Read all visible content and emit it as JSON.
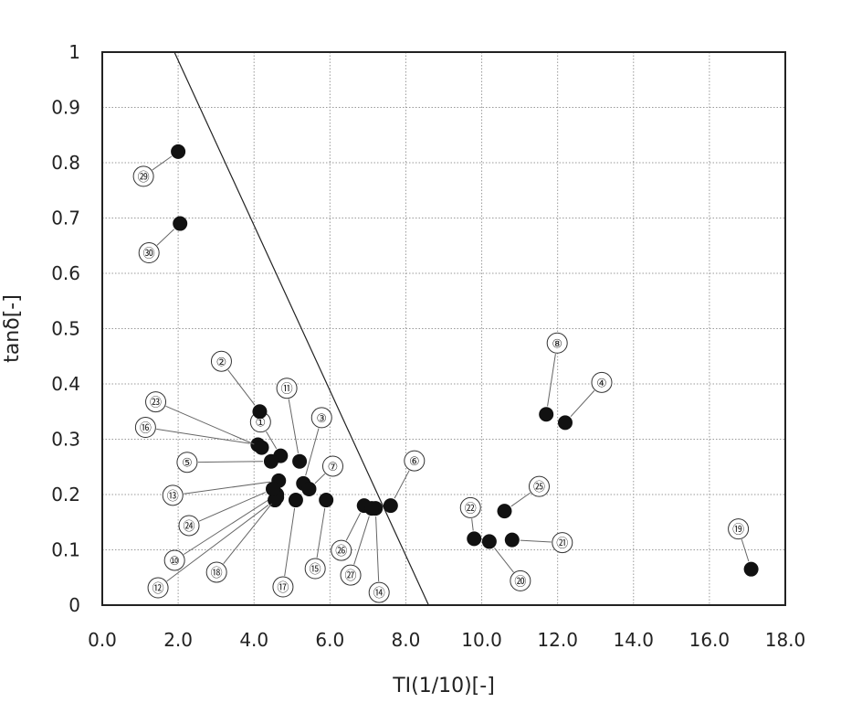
{
  "chart_data": {
    "type": "scatter",
    "title": "",
    "xlabel": "TI(1/10)[-]",
    "ylabel": "tanδ[-]",
    "xlim": [
      0,
      18
    ],
    "ylim": [
      0,
      1
    ],
    "x_ticks": [
      "0.0",
      "2.0",
      "4.0",
      "6.0",
      "8.0",
      "10.0",
      "12.0",
      "14.0",
      "16.0",
      "18.0"
    ],
    "y_ticks": [
      "0",
      "0.1",
      "0.2",
      "0.3",
      "0.4",
      "0.5",
      "0.6",
      "0.7",
      "0.8",
      "0.9",
      "1"
    ],
    "grid": true,
    "legend": "none",
    "series": [
      {
        "points": [
          {
            "label": "①",
            "x": 4.7,
            "y": 0.27
          },
          {
            "label": "②",
            "x": 4.15,
            "y": 0.35
          },
          {
            "label": "③",
            "x": 5.3,
            "y": 0.22
          },
          {
            "label": "④",
            "x": 12.2,
            "y": 0.33
          },
          {
            "label": "⑤",
            "x": 4.45,
            "y": 0.26
          },
          {
            "label": "⑥",
            "x": 7.6,
            "y": 0.18
          },
          {
            "label": "⑦",
            "x": 5.45,
            "y": 0.21
          },
          {
            "label": "⑧",
            "x": 11.7,
            "y": 0.345
          },
          {
            "label": "⑩",
            "x": 4.6,
            "y": 0.2
          },
          {
            "label": "⑪",
            "x": 5.2,
            "y": 0.26
          },
          {
            "label": "⑫",
            "x": 4.55,
            "y": 0.19
          },
          {
            "label": "⑬",
            "x": 4.65,
            "y": 0.225
          },
          {
            "label": "⑭",
            "x": 7.2,
            "y": 0.175
          },
          {
            "label": "⑮",
            "x": 5.9,
            "y": 0.19
          },
          {
            "label": "⑯",
            "x": 4.1,
            "y": 0.29
          },
          {
            "label": "⑰",
            "x": 5.1,
            "y": 0.19
          },
          {
            "label": "⑱",
            "x": 4.6,
            "y": 0.195
          },
          {
            "label": "⑲",
            "x": 17.1,
            "y": 0.065
          },
          {
            "label": "⑳",
            "x": 10.2,
            "y": 0.115
          },
          {
            "label": "㉑",
            "x": 10.8,
            "y": 0.118
          },
          {
            "label": "㉒",
            "x": 9.8,
            "y": 0.12
          },
          {
            "label": "㉓",
            "x": 4.2,
            "y": 0.285
          },
          {
            "label": "㉔",
            "x": 4.5,
            "y": 0.21
          },
          {
            "label": "㉕",
            "x": 10.6,
            "y": 0.17
          },
          {
            "label": "㉖",
            "x": 6.9,
            "y": 0.18
          },
          {
            "label": "㉗",
            "x": 7.1,
            "y": 0.175
          },
          {
            "label": "㉙",
            "x": 2.0,
            "y": 0.82
          },
          {
            "label": "㉚",
            "x": 2.05,
            "y": 0.69
          }
        ]
      }
    ],
    "reference_line": {
      "from": [
        1.9,
        1.0
      ],
      "to": [
        8.6,
        0.0
      ]
    }
  }
}
